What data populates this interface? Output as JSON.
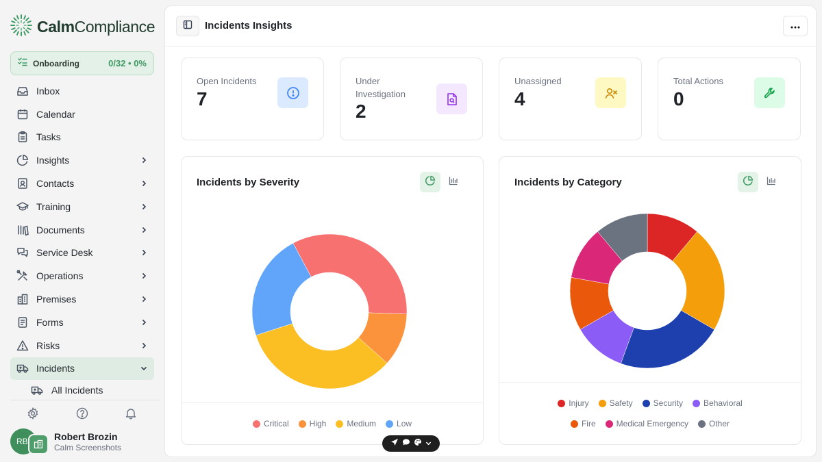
{
  "app": {
    "name_bold": "Calm",
    "name_light": "Compliance"
  },
  "onboarding": {
    "label": "Onboarding",
    "progress_text": "0/32 • 0%"
  },
  "sidebar": {
    "items": [
      {
        "label": "Inbox",
        "icon": "inbox-icon",
        "chevron": false
      },
      {
        "label": "Calendar",
        "icon": "calendar-icon",
        "chevron": false
      },
      {
        "label": "Tasks",
        "icon": "clipboard-icon",
        "chevron": false
      },
      {
        "label": "Insights",
        "icon": "pie-chart-icon",
        "chevron": true
      },
      {
        "label": "Contacts",
        "icon": "contact-card-icon",
        "chevron": true
      },
      {
        "label": "Training",
        "icon": "graduation-cap-icon",
        "chevron": true
      },
      {
        "label": "Documents",
        "icon": "library-icon",
        "chevron": true
      },
      {
        "label": "Service Desk",
        "icon": "messages-icon",
        "chevron": true
      },
      {
        "label": "Operations",
        "icon": "tools-icon",
        "chevron": true
      },
      {
        "label": "Premises",
        "icon": "building-icon",
        "chevron": true
      },
      {
        "label": "Forms",
        "icon": "form-icon",
        "chevron": true
      },
      {
        "label": "Risks",
        "icon": "warning-icon",
        "chevron": true
      },
      {
        "label": "Incidents",
        "icon": "ambulance-icon",
        "chevron": true,
        "active": true,
        "expanded": true
      }
    ],
    "sub_items": [
      {
        "label": "All Incidents",
        "icon": "ambulance-icon"
      }
    ]
  },
  "user": {
    "initials": "RB",
    "name": "Robert Brozin",
    "org": "Calm Screenshots"
  },
  "header": {
    "title": "Incidents Insights"
  },
  "stats": [
    {
      "label": "Open Incidents",
      "value": "7",
      "icon": "alert-circle-icon",
      "color": "#3b82f6",
      "bg": "#dbeafe"
    },
    {
      "label": "Under Investigation",
      "value": "2",
      "icon": "file-search-icon",
      "color": "#9333ea",
      "bg": "#f3e8ff"
    },
    {
      "label": "Unassigned",
      "value": "4",
      "icon": "user-x-icon",
      "color": "#ca8a04",
      "bg": "#fef9c3"
    },
    {
      "label": "Total Actions",
      "value": "0",
      "icon": "wrench-icon",
      "color": "#16a34a",
      "bg": "#dcfce7"
    }
  ],
  "chart_data": [
    {
      "type": "pie",
      "title": "Incidents by Severity",
      "donut": true,
      "categories": [
        "Critical",
        "High",
        "Medium",
        "Low"
      ],
      "values": [
        3,
        1,
        3,
        2
      ],
      "colors": [
        "#f87171",
        "#fb923c",
        "#fbbf24",
        "#60a5fa"
      ],
      "legend": "bottom"
    },
    {
      "type": "pie",
      "title": "Incidents by Category",
      "donut": true,
      "categories": [
        "Injury",
        "Safety",
        "Security",
        "Behavioral",
        "Fire",
        "Medical Emergency",
        "Other"
      ],
      "values": [
        1,
        2,
        2,
        1,
        1,
        1,
        1
      ],
      "colors": [
        "#dc2626",
        "#f59e0b",
        "#1e40af",
        "#8b5cf6",
        "#ea580c",
        "#db2777",
        "#6b7280"
      ],
      "legend": "bottom"
    }
  ]
}
